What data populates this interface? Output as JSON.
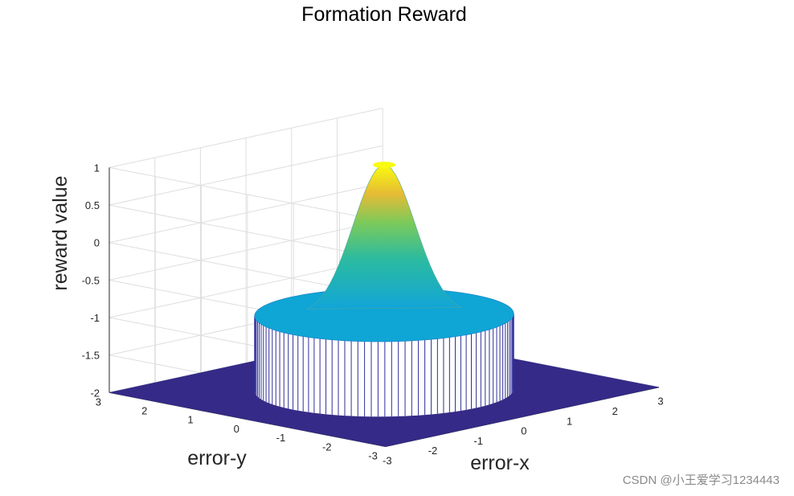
{
  "chart_data": {
    "type": "surface",
    "title": "Formation Reward",
    "xlabel": "error-x",
    "ylabel": "error-y",
    "zlabel": "reward value",
    "xlim": [
      -3,
      3
    ],
    "ylim": [
      -3,
      3
    ],
    "zlim": [
      -2,
      1
    ],
    "xticks": [
      "-3",
      "-2",
      "-1",
      "0",
      "1",
      "2",
      "3"
    ],
    "yticks": [
      "-3",
      "-2",
      "-1",
      "0",
      "1",
      "2",
      "3"
    ],
    "zticks": [
      "-2",
      "-1.5",
      "-1",
      "-0.5",
      "0",
      "0.5",
      "1"
    ],
    "grid": true,
    "colormap": "parula",
    "surface_regions": [
      {
        "region": "outside radius 2",
        "z": -2
      },
      {
        "region": "inside radius 2, base",
        "z": -1
      },
      {
        "region": "center peak (0,0)",
        "z": 1
      }
    ],
    "colors": {
      "low": "#352a87",
      "plateau": "#0fa6d6",
      "peak": "#f9fb0e",
      "edge": "#2e2f9a"
    }
  },
  "watermark": "CSDN @小王爱学习1234443"
}
